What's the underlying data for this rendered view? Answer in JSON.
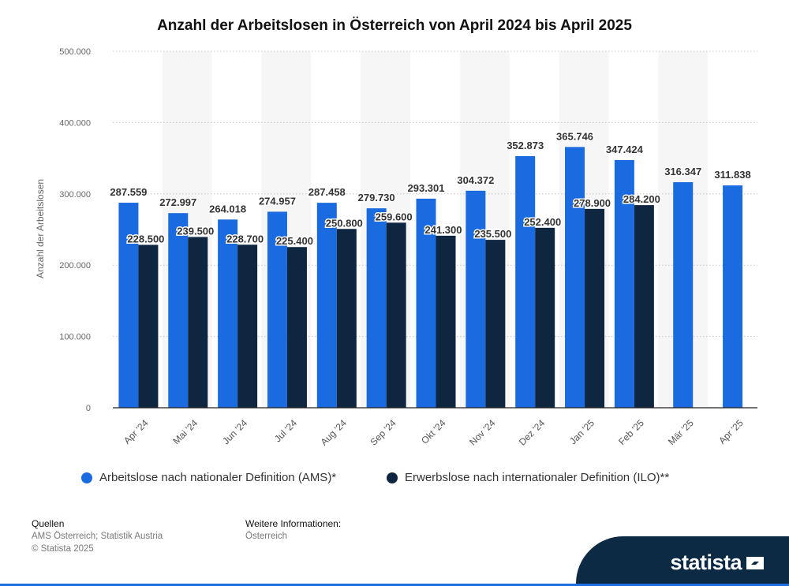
{
  "chart_data": {
    "type": "bar",
    "title": "Anzahl der Arbeitslosen in Österreich von April 2024 bis April 2025",
    "xlabel": "",
    "ylabel": "Anzahl der Arbeitslosen",
    "ylim": [
      0,
      500000
    ],
    "yticks": [
      0,
      100000,
      200000,
      300000,
      400000,
      500000
    ],
    "ytick_labels": [
      "0",
      "100.000",
      "200.000",
      "300.000",
      "400.000",
      "500.000"
    ],
    "categories": [
      "Apr '24",
      "Mai '24",
      "Jun '24",
      "Jul '24",
      "Aug '24",
      "Sep '24",
      "Okt '24",
      "Nov '24",
      "Dez '24",
      "Jan '25",
      "Feb '25",
      "Mär '25",
      "Apr '25"
    ],
    "series": [
      {
        "name": "Arbeitslose nach nationaler Definition (AMS)*",
        "color": "#1a6ae0",
        "values": [
          287559,
          272997,
          264018,
          274957,
          287458,
          279730,
          293301,
          304372,
          352873,
          365746,
          347424,
          316347,
          311838
        ],
        "labels": [
          "287.559",
          "272.997",
          "264.018",
          "274.957",
          "287.458",
          "279.730",
          "293.301",
          "304.372",
          "352.873",
          "365.746",
          "347.424",
          "316.347",
          "311.838"
        ]
      },
      {
        "name": "Erwerbslose nach internationaler Definition (ILO)**",
        "color": "#0f2640",
        "values": [
          228500,
          239500,
          228700,
          225400,
          250800,
          259600,
          241300,
          235500,
          252400,
          278900,
          284200,
          null,
          null
        ],
        "labels": [
          "228.500",
          "239.500",
          "228.700",
          "225.400",
          "250.800",
          "259.600",
          "241.300",
          "235.500",
          "252.400",
          "278.900",
          "284.200",
          null,
          null
        ]
      }
    ],
    "legend": "bottom",
    "grid": true
  },
  "footer": {
    "sources_heading": "Quellen",
    "sources_text": "AMS Österreich; Statistik Austria",
    "copyright": "© Statista 2025",
    "info_heading": "Weitere Informationen:",
    "info_text": "Österreich"
  },
  "brand": {
    "name": "statista"
  }
}
